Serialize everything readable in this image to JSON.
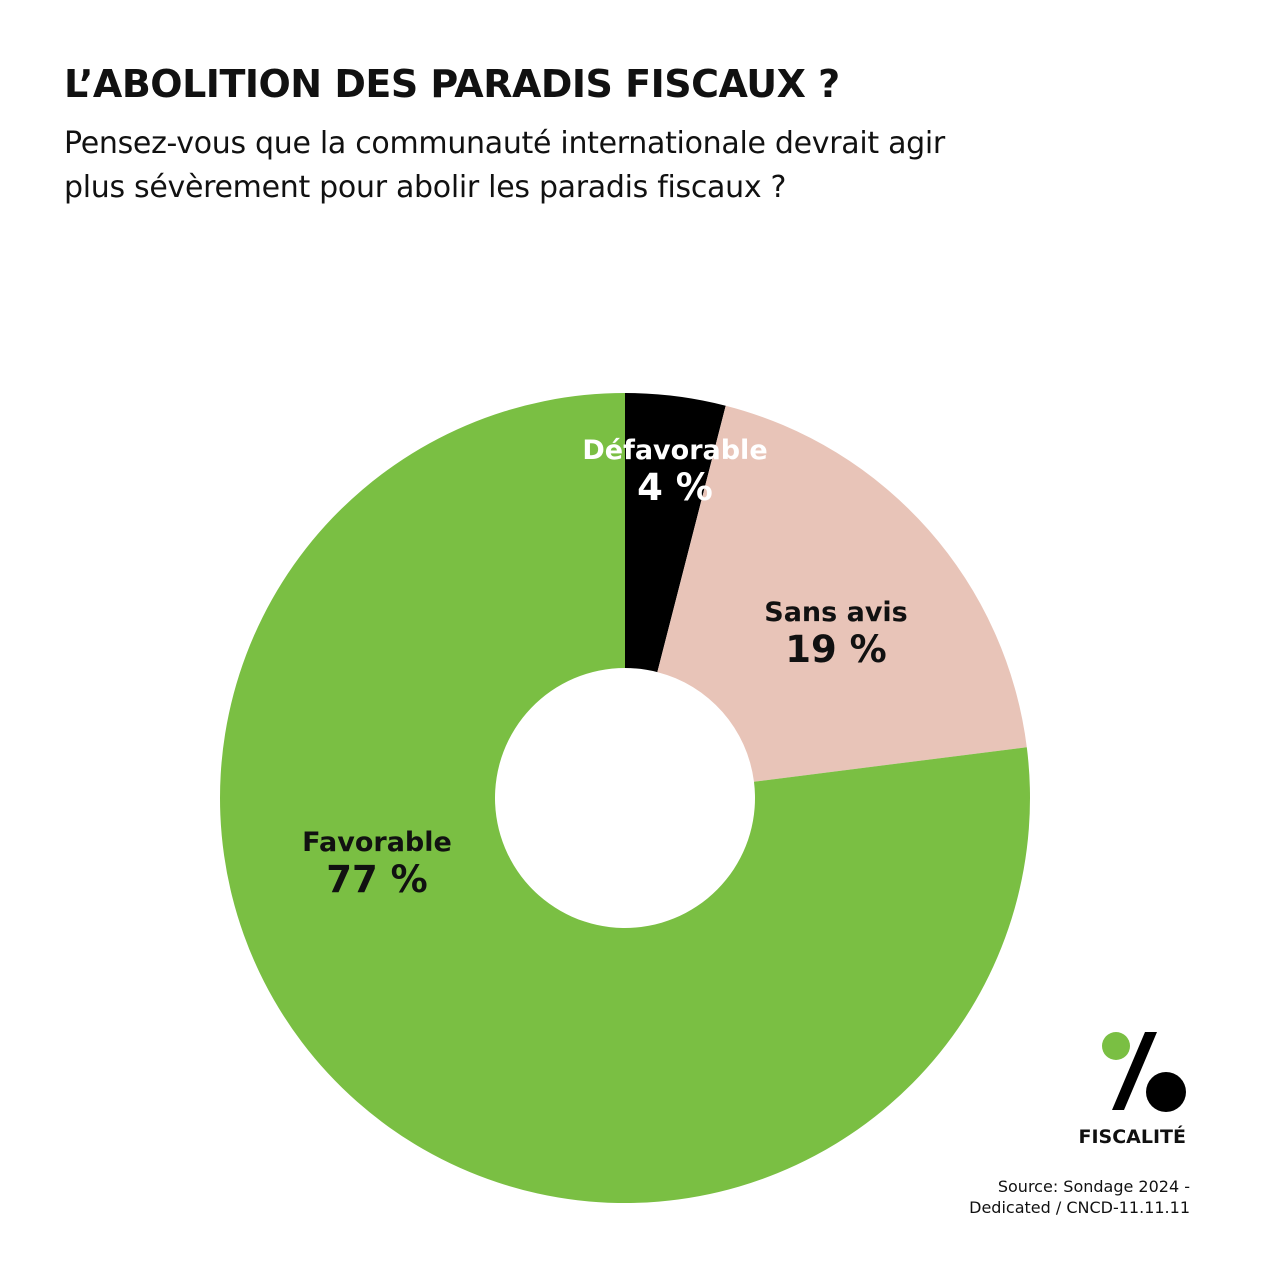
{
  "header": {
    "title": "L’ABOLITION DES PARADIS FISCAUX ?",
    "subtitle": "Pensez-vous que la communauté internationale devrait agir plus sévèrement pour abolir les paradis fiscaux ?"
  },
  "chart_data": {
    "type": "pie",
    "donut": true,
    "start": "top",
    "direction": "clockwise",
    "slices": [
      {
        "label": "Défavorable",
        "value": 4,
        "display": "4 %",
        "color": "#000000",
        "text_color": "#ffffff"
      },
      {
        "label": "Sans avis",
        "value": 19,
        "display": "19 %",
        "color": "#e8c4b8",
        "text_color": "#111111"
      },
      {
        "label": "Favorable",
        "value": 77,
        "display": "77 %",
        "color": "#7abf43",
        "text_color": "#111111"
      }
    ]
  },
  "branding": {
    "logo_text": "FISCALITÉ",
    "logo_colors": {
      "dot": "#7abf43",
      "mark": "#000000"
    }
  },
  "source": {
    "line1": "Source: Sondage 2024 -",
    "line2": "Dedicated /  CNCD-11.11.11"
  }
}
